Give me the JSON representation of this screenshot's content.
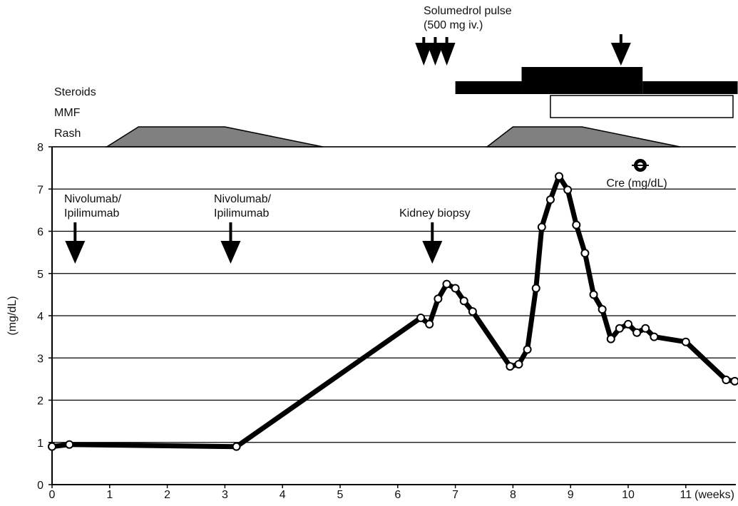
{
  "chart_data": {
    "type": "line",
    "ylabel": "(mg/dL)",
    "x_unit": "(weeks)",
    "xlim": [
      0,
      11.8
    ],
    "ylim": [
      0,
      8
    ],
    "x_ticks": [
      0,
      1,
      2,
      3,
      4,
      5,
      6,
      7,
      8,
      9,
      10,
      11
    ],
    "y_ticks": [
      0,
      1,
      2,
      3,
      4,
      5,
      6,
      7,
      8
    ],
    "grid": true,
    "series": [
      {
        "name": "Cre (mg/dL)",
        "x": [
          0.0,
          0.3,
          3.2,
          6.4,
          6.55,
          6.7,
          6.85,
          7.0,
          7.15,
          7.3,
          7.95,
          8.1,
          8.25,
          8.4,
          8.5,
          8.65,
          8.8,
          8.95,
          9.1,
          9.25,
          9.4,
          9.55,
          9.7,
          9.85,
          10.0,
          10.15,
          10.3,
          10.45,
          11.0,
          11.7,
          11.85
        ],
        "y": [
          0.9,
          0.95,
          0.9,
          3.95,
          3.8,
          4.4,
          4.75,
          4.65,
          4.35,
          4.1,
          2.8,
          2.85,
          3.2,
          4.65,
          6.1,
          6.75,
          7.3,
          6.98,
          6.15,
          5.48,
          4.5,
          4.15,
          3.45,
          3.7,
          3.8,
          3.6,
          3.7,
          3.5,
          3.38,
          2.48,
          2.45
        ]
      }
    ],
    "annotations": {
      "dose_1": {
        "x": 0.4,
        "text": [
          "Nivolumab/",
          "Ipilimumab"
        ]
      },
      "dose_2": {
        "x": 3.1,
        "text": [
          "Nivolumab/",
          "Ipilimumab"
        ]
      },
      "biopsy": {
        "x": 6.6,
        "text": [
          "Kidney biopsy"
        ]
      },
      "pulse": {
        "x": [
          6.6,
          6.8,
          7.0
        ],
        "text": [
          "Solumedrol pulse",
          "(500 mg iv.)"
        ]
      },
      "late_arrow": {
        "x": 9.8
      },
      "legend_marker": "Cre (mg/dL)"
    },
    "timeline": {
      "rows": [
        {
          "key": "steroids",
          "label": "Steroids"
        },
        {
          "key": "mmf",
          "label": "MMF"
        },
        {
          "key": "rash",
          "label": "Rash"
        }
      ],
      "steroids": [
        {
          "start": 7.0,
          "end": 8.15,
          "level": "low"
        },
        {
          "start": 8.15,
          "end": 10.25,
          "level": "high"
        },
        {
          "start": 10.25,
          "end": 11.9,
          "level": "low"
        }
      ],
      "mmf": [
        {
          "start": 8.65,
          "end": 11.9
        }
      ],
      "rash": [
        {
          "points": [
            [
              0.95,
              0
            ],
            [
              1.5,
              1
            ],
            [
              3.0,
              1
            ],
            [
              4.7,
              0
            ]
          ]
        },
        {
          "points": [
            [
              7.55,
              0
            ],
            [
              8.0,
              1
            ],
            [
              9.2,
              1
            ],
            [
              10.9,
              0
            ]
          ]
        }
      ]
    },
    "colors": {
      "line": "#000000",
      "marker_fill": "#ffffff",
      "rash_fill": "#808080",
      "bar_fill": "#000000"
    }
  }
}
